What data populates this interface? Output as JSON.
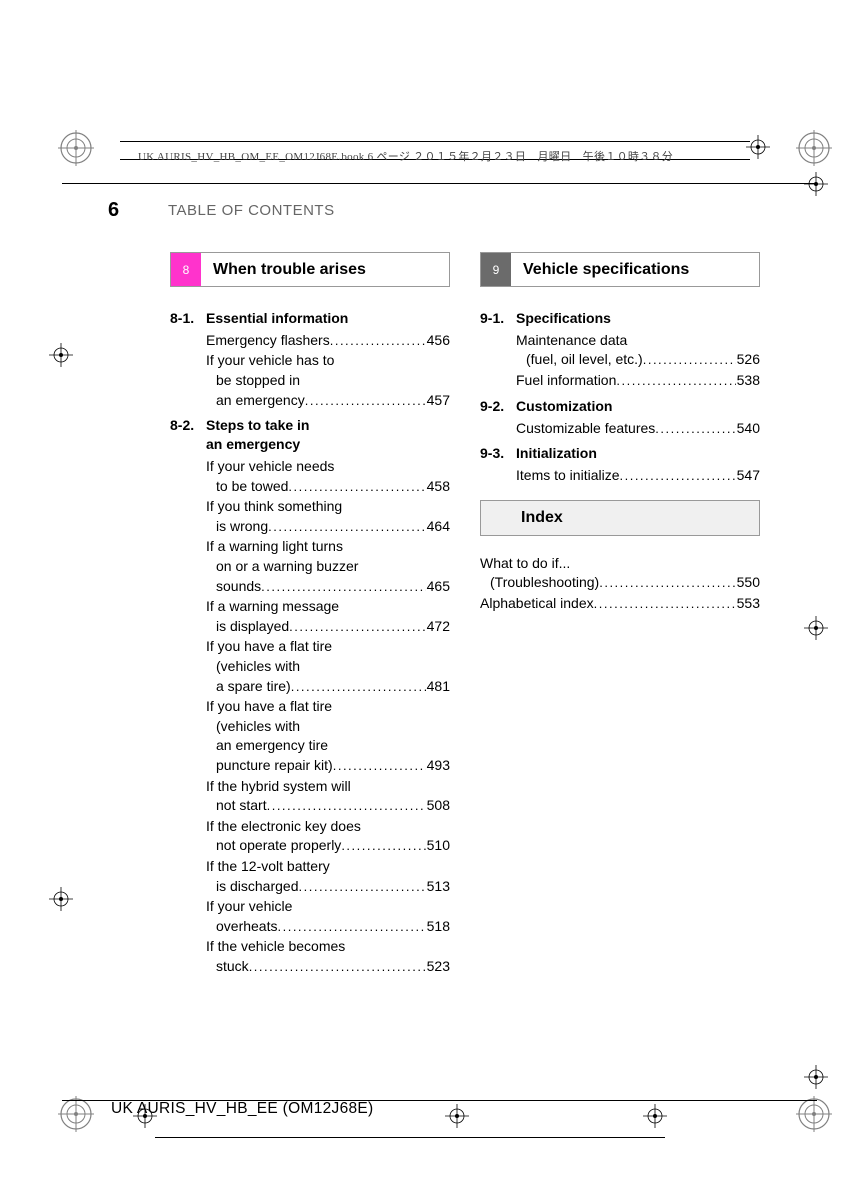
{
  "meta": {
    "top_caption": "UK AURIS_HV_HB_OM_EE_OM12J68E.book  6 ページ  ２０１５年２月２３日　月曜日　午後１０時３８分",
    "page_number": "6",
    "page_title": "TABLE OF CONTENTS",
    "footer": "UK AURIS_HV_HB_EE (OM12J68E)"
  },
  "colors": {
    "badge8": "#ff33cc",
    "badge9": "#6b6b6b",
    "index_bg": "#f0f0f0",
    "regmark": "#808080",
    "line": "#000000"
  },
  "left": {
    "header": {
      "badge": "8",
      "title": "When trouble arises"
    },
    "subsections": [
      {
        "num": "8-1.",
        "title": "Essential information",
        "entries": [
          {
            "lines": [
              "Emergency flashers"
            ],
            "page": "456"
          },
          {
            "lines": [
              "If your vehicle has to",
              "be stopped in",
              "an emergency"
            ],
            "page": "457"
          }
        ]
      },
      {
        "num": "8-2.",
        "title_lines": [
          "Steps to take in",
          "an emergency"
        ],
        "entries": [
          {
            "lines": [
              "If your vehicle needs",
              "to be towed"
            ],
            "page": "458"
          },
          {
            "lines": [
              "If you think something",
              "is wrong"
            ],
            "page": "464"
          },
          {
            "lines": [
              "If a warning light turns",
              "on or a warning buzzer",
              "sounds"
            ],
            "page": "465"
          },
          {
            "lines": [
              "If a warning message",
              "is displayed"
            ],
            "page": "472"
          },
          {
            "lines": [
              "If you have a flat tire",
              "(vehicles with",
              "a spare tire)"
            ],
            "page": "481"
          },
          {
            "lines": [
              "If you have a flat tire",
              "(vehicles with",
              "an emergency tire",
              "puncture repair kit)"
            ],
            "page": "493"
          },
          {
            "lines": [
              "If the hybrid system will",
              "not start"
            ],
            "page": "508"
          },
          {
            "lines": [
              "If the electronic key does",
              "not operate properly"
            ],
            "page": "510"
          },
          {
            "lines": [
              "If the 12-volt battery",
              "is discharged"
            ],
            "page": "513"
          },
          {
            "lines": [
              "If your vehicle",
              "overheats"
            ],
            "page": "518"
          },
          {
            "lines": [
              "If the vehicle becomes",
              "stuck"
            ],
            "page": "523"
          }
        ]
      }
    ]
  },
  "right": {
    "header": {
      "badge": "9",
      "title": "Vehicle specifications"
    },
    "subsections": [
      {
        "num": "9-1.",
        "title": "Specifications",
        "entries": [
          {
            "lines": [
              "Maintenance data",
              "(fuel, oil level, etc.)"
            ],
            "page": "526"
          },
          {
            "lines": [
              "Fuel information"
            ],
            "page": "538"
          }
        ]
      },
      {
        "num": "9-2.",
        "title": "Customization",
        "entries": [
          {
            "lines": [
              "Customizable features"
            ],
            "page": "540"
          }
        ]
      },
      {
        "num": "9-3.",
        "title": "Initialization",
        "entries": [
          {
            "lines": [
              "Items to initialize"
            ],
            "page": "547"
          }
        ]
      }
    ],
    "index_header": "Index",
    "index_entries": [
      {
        "lines": [
          "What to do if...",
          "(Troubleshooting)"
        ],
        "page": "550"
      },
      {
        "lines": [
          "Alphabetical index"
        ],
        "page": "553"
      }
    ]
  }
}
